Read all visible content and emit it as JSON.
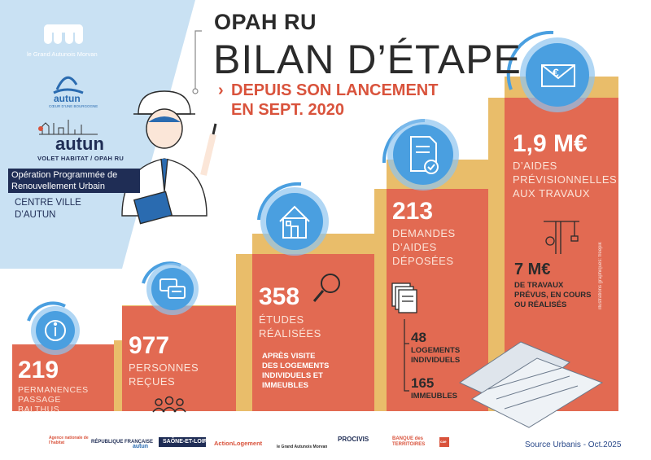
{
  "header": {
    "title_line1": "OPAH RU",
    "title_line2": "BILAN D’ÉTAPE",
    "subtitle_line1": "DEPUIS SON LANCEMENT",
    "subtitle_line2": "EN SEPT. 2020"
  },
  "sidebar": {
    "org_name": "le Grand Autunois Morvan",
    "city_logo_text": "autun",
    "city_logo_tagline": "CŒUR D’UNE BOURGOGNE",
    "volet_logo_text": "autun",
    "volet_subtitle": "VOLET HABITAT / OPAH RU",
    "program_label": "Opération Programmée de Renouvellement Urbain",
    "area_line1": "CENTRE VILLE",
    "area_line2": "D’AUTUN"
  },
  "steps": [
    {
      "value": "219",
      "label_lines": [
        "PERMANENCES",
        "PASSAGE",
        "BALTHUS"
      ],
      "icon": "info-icon"
    },
    {
      "value": "977",
      "label_lines": [
        "PERSONNES",
        "REÇUES"
      ],
      "icon": "chat-icon"
    },
    {
      "value": "358",
      "label_lines": [
        "ÉTUDES",
        "RÉALISÉES"
      ],
      "note_lines": [
        "APRÈS VISITE",
        "DES LOGEMENTS",
        "INDIVIDUELS ET",
        "IMMEUBLES"
      ],
      "icon": "house-icon"
    },
    {
      "value": "213",
      "label_lines": [
        "DEMANDES",
        "D’AIDES",
        "DÉPOSÉES"
      ],
      "breakdown": [
        {
          "value": "48",
          "label_lines": [
            "LOGEMENTS",
            "INDIVIDUELS"
          ]
        },
        {
          "value": "165",
          "label_lines": [
            "IMMEUBLES"
          ]
        }
      ],
      "icon": "document-check-icon"
    },
    {
      "value": "1,9 M€",
      "label_lines": [
        "D’AIDES",
        "PRÉVISIONNELLES",
        "AUX TRAVAUX"
      ],
      "secondary_value": "7 M€",
      "secondary_lines": [
        "DE TRAVAUX",
        "PRÉVUS, EN COURS",
        "OU RÉALISÉS"
      ],
      "icon": "euro-envelope-icon"
    }
  ],
  "footer": {
    "source": "Source Urbanis - Oct.2025",
    "credit": "illustrations graphiques: freepik",
    "partners": [
      "Agence nationale de l’habitat",
      "RÉPUBLIQUE FRANÇAISE",
      "autun",
      "SAÔNE-ET-LOIRE",
      "ActionLogement",
      "le Grand Autunois Morvan",
      "PROCIVIS",
      "BANQUE des TERRITOIRES",
      "cae"
    ]
  },
  "colors": {
    "coral": "#e26a52",
    "gold": "#e9bd6a",
    "light_blue": "#c9e1f3",
    "circle_blue": "#4a9fe0",
    "navy": "#1f2d55",
    "accent_red": "#d9533c"
  }
}
